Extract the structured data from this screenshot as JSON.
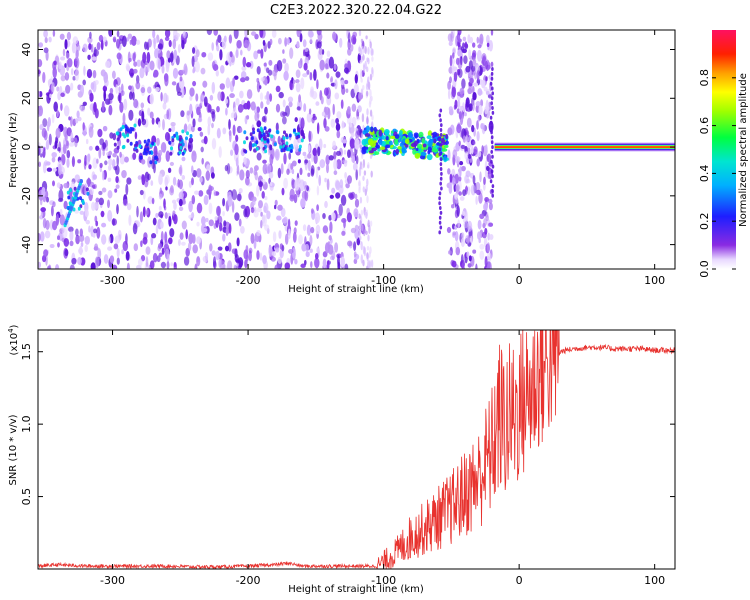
{
  "figure": {
    "title": "C2E3.2022.320.22.04.G22"
  },
  "chart_data": [
    {
      "type": "heatmap",
      "name": "spectrogram",
      "xlabel": "Height of straight line (km)",
      "ylabel": "Frequency (Hz)",
      "xlim": [
        -355,
        115
      ],
      "ylim": [
        -50,
        48
      ],
      "xticks": [
        -300,
        -200,
        -100,
        0,
        100
      ],
      "yticks": [
        -40,
        -20,
        0,
        20,
        40
      ],
      "colorbar": {
        "label": "Normalized spectral amplitude",
        "range": [
          0,
          1
        ],
        "ticks": [
          "0.0",
          "0.2",
          "0.4",
          "0.6",
          "0.8"
        ],
        "colormap": "rainbow (white/violet = low, blue, cyan, green, yellow, red, magenta = high)"
      },
      "regions": [
        {
          "x": [
            -355,
            -115
          ],
          "freq": [
            -50,
            48
          ],
          "description": "broadband noise, low amplitude violet/purple speckle"
        },
        {
          "x": [
            -115,
            -55
          ],
          "freq": [
            -8,
            10
          ],
          "description": "signal band emerging, blue/green speckle near 0 Hz"
        },
        {
          "x": [
            -52,
            -20
          ],
          "freq": [
            -50,
            48
          ],
          "description": "broadband noise column"
        },
        {
          "x": [
            -20,
            115
          ],
          "freq": [
            -2,
            2
          ],
          "description": "strong narrow carrier at 0 Hz, red/orange core"
        }
      ]
    },
    {
      "type": "line",
      "name": "snr",
      "xlabel": "Height of straight line (km)",
      "ylabel": "SNR (10 * v/v)",
      "yscale_label": "(x10^4)",
      "xlim": [
        -355,
        115
      ],
      "ylim": [
        0,
        1.65
      ],
      "xticks": [
        -300,
        -200,
        -100,
        0,
        100
      ],
      "yticks": [
        0.5,
        1.0,
        1.5
      ],
      "color": "#e8322e",
      "series": [
        {
          "x": [
            -355,
            -340,
            -320,
            -300,
            -280,
            -260,
            -240,
            -220,
            -200,
            -180,
            -170,
            -160,
            -140,
            -120,
            -105,
            -100,
            -90,
            -80,
            -70,
            -60,
            -50,
            -40,
            -30,
            -20,
            -15,
            -10,
            -5,
            0,
            5,
            10,
            15,
            20,
            25,
            30,
            40,
            50,
            60,
            70,
            80,
            90,
            100,
            115
          ],
          "y": [
            0.02,
            0.03,
            0.02,
            0.02,
            0.02,
            0.02,
            0.015,
            0.015,
            0.02,
            0.03,
            0.04,
            0.02,
            0.02,
            0.02,
            0.02,
            0.05,
            0.12,
            0.22,
            0.28,
            0.35,
            0.42,
            0.52,
            0.62,
            0.82,
            1.05,
            1.0,
            1.05,
            1.12,
            1.18,
            1.25,
            1.35,
            1.42,
            1.47,
            1.5,
            1.52,
            1.53,
            1.53,
            1.52,
            1.52,
            1.52,
            1.51,
            1.51
          ]
        }
      ]
    }
  ]
}
